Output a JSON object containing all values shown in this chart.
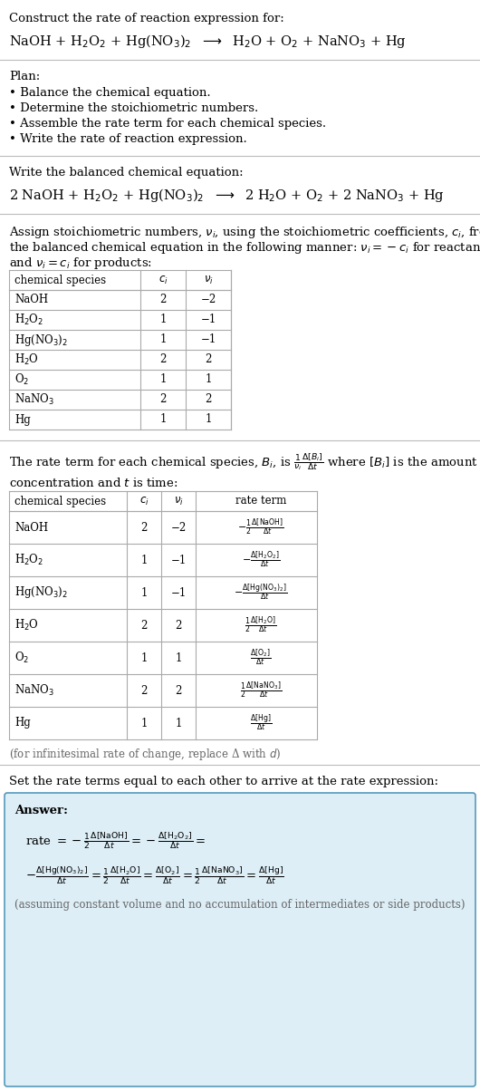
{
  "bg_color": "#ffffff",
  "text_color": "#000000",
  "gray_color": "#666666",
  "table_border_color": "#aaaaaa",
  "answer_bg_color": "#ddeef6",
  "answer_border_color": "#5599bb",
  "title_line1": "Construct the rate of reaction expression for:",
  "plan_title": "Plan:",
  "plan_items": [
    "• Balance the chemical equation.",
    "• Determine the stoichiometric numbers.",
    "• Assemble the rate term for each chemical species.",
    "• Write the rate of reaction expression."
  ],
  "balanced_title": "Write the balanced chemical equation:",
  "assign_text1": "Assign stoichiometric numbers, $\\nu_i$, using the stoichiometric coefficients, $c_i$, from",
  "assign_text2": "the balanced chemical equation in the following manner: $\\nu_i = -c_i$ for reactants",
  "assign_text3": "and $\\nu_i = c_i$ for products:",
  "table1_headers": [
    "chemical species",
    "$c_i$",
    "$\\nu_i$"
  ],
  "table1_data": [
    [
      "NaOH",
      "2",
      "−2"
    ],
    [
      "H$_2$O$_2$",
      "1",
      "−1"
    ],
    [
      "Hg(NO$_3$)$_2$",
      "1",
      "−1"
    ],
    [
      "H$_2$O",
      "2",
      "2"
    ],
    [
      "O$_2$",
      "1",
      "1"
    ],
    [
      "NaNO$_3$",
      "2",
      "2"
    ],
    [
      "Hg",
      "1",
      "1"
    ]
  ],
  "rate_text1": "The rate term for each chemical species, $B_i$, is $\\frac{1}{\\nu_i}\\frac{\\Delta[B_i]}{\\Delta t}$ where $[B_i]$ is the amount",
  "rate_text2": "concentration and $t$ is time:",
  "table2_headers": [
    "chemical species",
    "$c_i$",
    "$\\nu_i$",
    "rate term"
  ],
  "table2_data": [
    [
      "NaOH",
      "2",
      "−2",
      "$-\\frac{1}{2}\\frac{\\Delta[\\mathrm{NaOH}]}{\\Delta t}$"
    ],
    [
      "H$_2$O$_2$",
      "1",
      "−1",
      "$-\\frac{\\Delta[\\mathrm{H_2O_2}]}{\\Delta t}$"
    ],
    [
      "Hg(NO$_3$)$_2$",
      "1",
      "−1",
      "$-\\frac{\\Delta[\\mathrm{Hg(NO_3)_2}]}{\\Delta t}$"
    ],
    [
      "H$_2$O",
      "2",
      "2",
      "$\\frac{1}{2}\\frac{\\Delta[\\mathrm{H_2O}]}{\\Delta t}$"
    ],
    [
      "O$_2$",
      "1",
      "1",
      "$\\frac{\\Delta[\\mathrm{O_2}]}{\\Delta t}$"
    ],
    [
      "NaNO$_3$",
      "2",
      "2",
      "$\\frac{1}{2}\\frac{\\Delta[\\mathrm{NaNO_3}]}{\\Delta t}$"
    ],
    [
      "Hg",
      "1",
      "1",
      "$\\frac{\\Delta[\\mathrm{Hg}]}{\\Delta t}$"
    ]
  ],
  "infinitesimal_note": "(for infinitesimal rate of change, replace Δ with $d$)",
  "set_rate_text": "Set the rate terms equal to each other to arrive at the rate expression:",
  "answer_note": "(assuming constant volume and no accumulation of intermediates or side products)"
}
